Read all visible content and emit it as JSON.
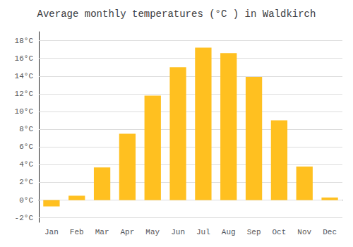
{
  "chart_data": {
    "type": "bar",
    "title": "Average monthly temperatures (°C ) in Waldkirch",
    "categories": [
      "Jan",
      "Feb",
      "Mar",
      "Apr",
      "May",
      "Jun",
      "Jul",
      "Aug",
      "Sep",
      "Oct",
      "Nov",
      "Dec"
    ],
    "values": [
      -0.7,
      0.5,
      3.7,
      7.5,
      11.8,
      15.0,
      17.2,
      16.6,
      13.9,
      9.0,
      3.8,
      0.3
    ],
    "color": "#FFC020",
    "ylim": [
      -2.5,
      19
    ],
    "yticks": [
      {
        "value": -2,
        "label": "-2°C"
      },
      {
        "value": 0,
        "label": "0°C"
      },
      {
        "value": 2,
        "label": "2°C"
      },
      {
        "value": 4,
        "label": "4°C"
      },
      {
        "value": 6,
        "label": "6°C"
      },
      {
        "value": 8,
        "label": "8°C"
      },
      {
        "value": 10,
        "label": "10°C"
      },
      {
        "value": 12,
        "label": "12°C"
      },
      {
        "value": 14,
        "label": "14°C"
      },
      {
        "value": 16,
        "label": "16°C"
      },
      {
        "value": 18,
        "label": "18°C"
      }
    ],
    "grid": true
  }
}
